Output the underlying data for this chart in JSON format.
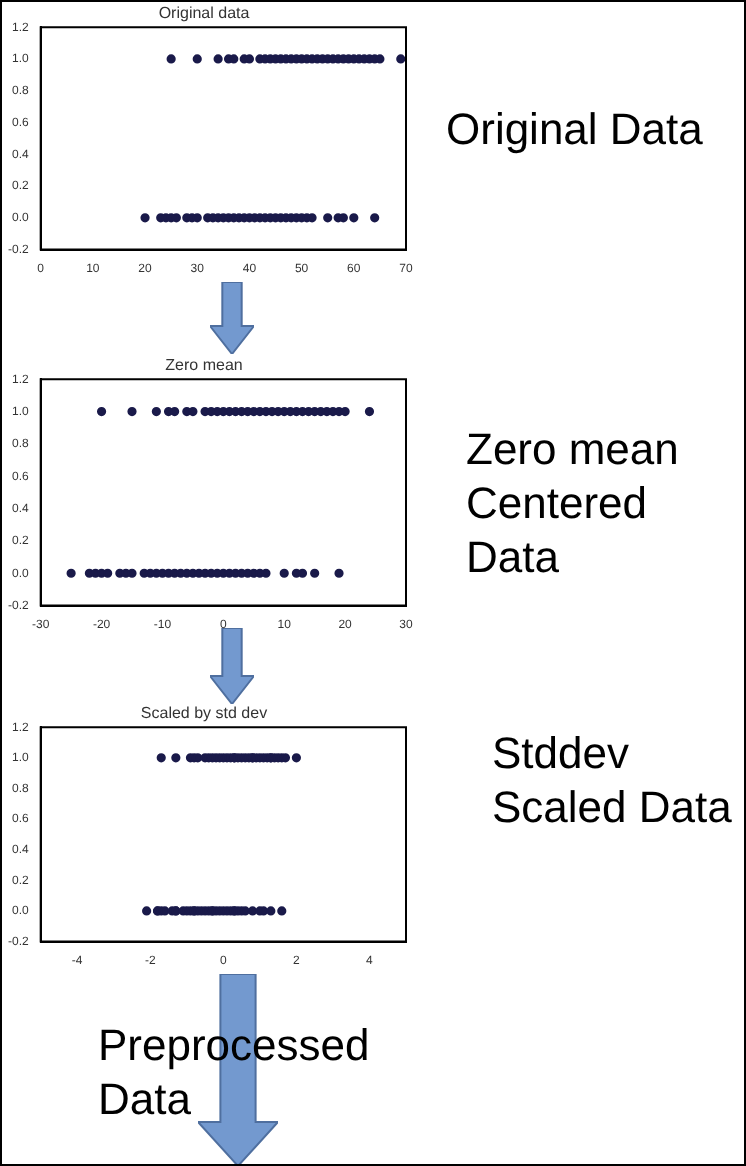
{
  "chart_data": [
    {
      "type": "scatter",
      "title": "Original data",
      "annotations": [
        "Original Data"
      ],
      "marker": "circle",
      "grid": false,
      "legend": false,
      "series": [
        {
          "color": "#1a1a4a",
          "x": [
            25,
            30,
            34,
            36,
            37,
            39,
            40,
            42,
            43,
            44,
            45,
            46,
            47,
            48,
            49,
            50,
            51,
            52,
            53,
            54,
            55,
            56,
            57,
            58,
            59,
            60,
            61,
            62,
            63,
            64,
            65,
            69,
            20,
            23,
            24,
            25,
            26,
            28,
            29,
            30,
            32,
            33,
            34,
            35,
            36,
            37,
            38,
            39,
            40,
            41,
            42,
            43,
            44,
            45,
            46,
            47,
            48,
            49,
            50,
            51,
            52,
            55,
            57,
            58,
            60,
            64
          ],
          "values": [
            1,
            1,
            1,
            1,
            1,
            1,
            1,
            1,
            1,
            1,
            1,
            1,
            1,
            1,
            1,
            1,
            1,
            1,
            1,
            1,
            1,
            1,
            1,
            1,
            1,
            1,
            1,
            1,
            1,
            1,
            1,
            1,
            0,
            0,
            0,
            0,
            0,
            0,
            0,
            0,
            0,
            0,
            0,
            0,
            0,
            0,
            0,
            0,
            0,
            0,
            0,
            0,
            0,
            0,
            0,
            0,
            0,
            0,
            0,
            0,
            0,
            0,
            0,
            0,
            0,
            0
          ]
        }
      ],
      "xlim": [
        0,
        70
      ],
      "xticks": [
        0,
        10,
        20,
        30,
        40,
        50,
        60,
        70
      ],
      "ylim": [
        -0.2,
        1.2
      ],
      "yticks": [
        {
          "value": -0.2,
          "label": "-0.2"
        },
        {
          "value": 0,
          "label": "0.0"
        },
        {
          "value": 0.2,
          "label": "0.2"
        },
        {
          "value": 0.4,
          "label": "0.4"
        },
        {
          "value": 0.6,
          "label": "0.6"
        },
        {
          "value": 0.8,
          "label": "0.8"
        },
        {
          "value": 1,
          "label": "1.0"
        },
        {
          "value": 1.2,
          "label": "1.2"
        }
      ]
    },
    {
      "type": "scatter",
      "title": "Zero mean",
      "annotations": [
        "Zero mean Centered Data"
      ],
      "marker": "circle",
      "grid": false,
      "legend": false,
      "series": [
        {
          "color": "#1a1a4a",
          "x": [
            -20,
            -15,
            -11,
            -9,
            -8,
            -6,
            -5,
            -3,
            -2,
            -1,
            0,
            1,
            2,
            3,
            4,
            5,
            6,
            7,
            8,
            9,
            10,
            11,
            12,
            13,
            14,
            15,
            16,
            17,
            18,
            19,
            20,
            24,
            -25,
            -22,
            -21,
            -20,
            -19,
            -17,
            -16,
            -15,
            -13,
            -12,
            -11,
            -10,
            -9,
            -8,
            -7,
            -6,
            -5,
            -4,
            -3,
            -2,
            -1,
            0,
            1,
            2,
            3,
            4,
            5,
            6,
            7,
            10,
            12,
            13,
            15,
            19
          ],
          "values": [
            1,
            1,
            1,
            1,
            1,
            1,
            1,
            1,
            1,
            1,
            1,
            1,
            1,
            1,
            1,
            1,
            1,
            1,
            1,
            1,
            1,
            1,
            1,
            1,
            1,
            1,
            1,
            1,
            1,
            1,
            1,
            1,
            0,
            0,
            0,
            0,
            0,
            0,
            0,
            0,
            0,
            0,
            0,
            0,
            0,
            0,
            0,
            0,
            0,
            0,
            0,
            0,
            0,
            0,
            0,
            0,
            0,
            0,
            0,
            0,
            0,
            0,
            0,
            0,
            0,
            0
          ]
        }
      ],
      "xlim": [
        -30,
        30
      ],
      "xticks": [
        -30,
        -20,
        -10,
        0,
        10,
        20,
        30
      ],
      "ylim": [
        -0.2,
        1.2
      ],
      "yticks": [
        {
          "value": -0.2,
          "label": "-0.2"
        },
        {
          "value": 0,
          "label": "0.0"
        },
        {
          "value": 0.2,
          "label": "0.2"
        },
        {
          "value": 0.4,
          "label": "0.4"
        },
        {
          "value": 0.6,
          "label": "0.6"
        },
        {
          "value": 0.8,
          "label": "0.8"
        },
        {
          "value": 1,
          "label": "1.0"
        },
        {
          "value": 1.2,
          "label": "1.2"
        }
      ]
    },
    {
      "type": "scatter",
      "title": "Scaled by std dev",
      "annotations": [
        "Stddev Scaled Data",
        "Preprocessed Data"
      ],
      "marker": "circle",
      "grid": false,
      "legend": false,
      "series": [
        {
          "color": "#1a1a4a",
          "x": [
            -1.7,
            -1.3,
            -0.9,
            -0.8,
            -0.7,
            -0.5,
            -0.4,
            -0.3,
            -0.2,
            -0.1,
            0,
            0.1,
            0.2,
            0.3,
            0.3,
            0.4,
            0.5,
            0.6,
            0.7,
            0.8,
            0.8,
            0.9,
            1.0,
            1.1,
            1.2,
            1.3,
            1.3,
            1.4,
            1.5,
            1.6,
            1.7,
            2.0,
            -2.1,
            -1.8,
            -1.8,
            -1.7,
            -1.6,
            -1.4,
            -1.3,
            -1.3,
            -1.1,
            -1.0,
            -0.9,
            -0.8,
            -0.8,
            -0.7,
            -0.6,
            -0.5,
            -0.4,
            -0.3,
            -0.3,
            -0.2,
            -0.1,
            0,
            0.1,
            0.2,
            0.3,
            0.3,
            0.4,
            0.5,
            0.6,
            0.8,
            1.0,
            1.1,
            1.3,
            1.6
          ],
          "values": [
            1,
            1,
            1,
            1,
            1,
            1,
            1,
            1,
            1,
            1,
            1,
            1,
            1,
            1,
            1,
            1,
            1,
            1,
            1,
            1,
            1,
            1,
            1,
            1,
            1,
            1,
            1,
            1,
            1,
            1,
            1,
            1,
            0,
            0,
            0,
            0,
            0,
            0,
            0,
            0,
            0,
            0,
            0,
            0,
            0,
            0,
            0,
            0,
            0,
            0,
            0,
            0,
            0,
            0,
            0,
            0,
            0,
            0,
            0,
            0,
            0,
            0,
            0,
            0,
            0,
            0
          ]
        }
      ],
      "xlim": [
        -5,
        5
      ],
      "xticks": [
        -4,
        -2,
        0,
        2,
        4
      ],
      "ylim": [
        -0.2,
        1.2
      ],
      "yticks": [
        {
          "value": -0.2,
          "label": "-0.2"
        },
        {
          "value": 0,
          "label": "0.0"
        },
        {
          "value": 0.2,
          "label": "0.2"
        },
        {
          "value": 0.4,
          "label": "0.4"
        },
        {
          "value": 0.6,
          "label": "0.6"
        },
        {
          "value": 0.8,
          "label": "0.8"
        },
        {
          "value": 1,
          "label": "1.0"
        },
        {
          "value": 1.2,
          "label": "1.2"
        }
      ]
    }
  ]
}
